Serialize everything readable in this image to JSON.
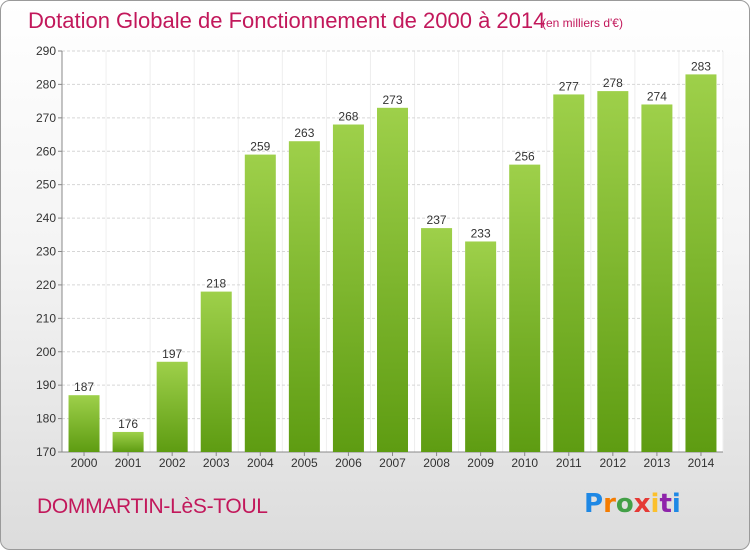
{
  "title": "Dotation Globale de Fonctionnement de 2000 à 2014",
  "subtitle": "(en milliers d'€)",
  "commune": "DOMMARTIN-LèS-TOUL",
  "logo_text": "Proxiti",
  "colors": {
    "title": "#c2185b",
    "bar_top": "#9ed04a",
    "bar_bottom": "#5e9c12",
    "grid": "#d6d6d6",
    "axis_text": "#333333"
  },
  "chart_data": {
    "type": "bar",
    "title": "Dotation Globale de Fonctionnement de 2000 à 2014",
    "subtitle": "(en milliers d'€)",
    "categories": [
      "2000",
      "2001",
      "2002",
      "2003",
      "2004",
      "2005",
      "2006",
      "2007",
      "2008",
      "2009",
      "2010",
      "2011",
      "2012",
      "2013",
      "2014"
    ],
    "values": [
      187,
      176,
      197,
      218,
      259,
      263,
      268,
      273,
      237,
      233,
      256,
      277,
      278,
      274,
      283
    ],
    "ylim": [
      170,
      290
    ],
    "yticks": [
      170,
      180,
      190,
      200,
      210,
      220,
      230,
      240,
      250,
      260,
      270,
      280,
      290
    ],
    "grid": true,
    "data_labels": true
  }
}
